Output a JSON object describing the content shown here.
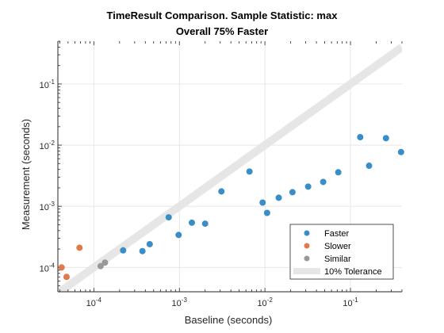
{
  "chart_data": {
    "type": "scatter",
    "title": "TimeResult Comparison. Sample Statistic: max",
    "subtitle": "Overall 75% Faster",
    "xlabel": "Baseline (seconds)",
    "ylabel": "Measurement (seconds)",
    "x_scale": "log",
    "y_scale": "log",
    "xlim": [
      3.8e-05,
      0.0004
    ],
    "ylim": [
      4e-05,
      0.5
    ],
    "xlim_full": [
      3.8e-05,
      0.4
    ],
    "x_ticks": [
      {
        "base": "10",
        "exp": "-4",
        "value": 0.0001
      },
      {
        "base": "10",
        "exp": "-3",
        "value": 0.001
      },
      {
        "base": "10",
        "exp": "-2",
        "value": 0.01
      },
      {
        "base": "10",
        "exp": "-1",
        "value": 0.1
      }
    ],
    "y_ticks": [
      {
        "base": "10",
        "exp": "-4",
        "value": 0.0001
      },
      {
        "base": "10",
        "exp": "-3",
        "value": 0.001
      },
      {
        "base": "10",
        "exp": "-2",
        "value": 0.01
      },
      {
        "base": "10",
        "exp": "-1",
        "value": 0.1
      }
    ],
    "grid": true,
    "legend_position": "bottom-right",
    "tolerance_band": {
      "name": "10% Tolerance",
      "color": "#e6e6e6"
    },
    "series": [
      {
        "name": "Faster",
        "color": "#3a8ec8",
        "points": [
          [
            0.00022,
            0.00019
          ],
          [
            0.00037,
            0.000185
          ],
          [
            0.00045,
            0.00024
          ],
          [
            0.00075,
            0.00066
          ],
          [
            0.00098,
            0.00034
          ],
          [
            0.0014,
            0.00054
          ],
          [
            0.002,
            0.00052
          ],
          [
            0.0031,
            0.00175
          ],
          [
            0.0066,
            0.0037
          ],
          [
            0.0094,
            0.00115
          ],
          [
            0.0106,
            0.00078
          ],
          [
            0.0145,
            0.00138
          ],
          [
            0.021,
            0.0017
          ],
          [
            0.032,
            0.0021
          ],
          [
            0.048,
            0.0025
          ],
          [
            0.072,
            0.0036
          ],
          [
            0.13,
            0.0135
          ],
          [
            0.165,
            0.0046
          ],
          [
            0.26,
            0.013
          ],
          [
            0.39,
            0.0077
          ]
        ]
      },
      {
        "name": "Slower",
        "color": "#e07a4a",
        "points": [
          [
            4.2e-05,
            0.0001
          ],
          [
            4.8e-05,
            7e-05
          ],
          [
            6.8e-05,
            0.00021
          ]
        ]
      },
      {
        "name": "Similar",
        "color": "#999999",
        "points": [
          [
            0.00012,
            0.000105
          ],
          [
            0.000135,
            0.00012
          ]
        ]
      }
    ]
  }
}
